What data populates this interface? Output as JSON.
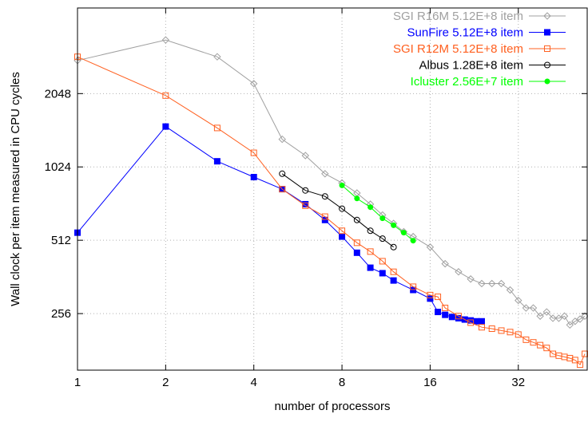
{
  "chart_data": {
    "type": "line",
    "xlabel": "number of processors",
    "ylabel": "Wall clock per item measured in CPU cycles",
    "x_scale": "log2",
    "y_scale": "log2",
    "xlim": [
      1,
      55
    ],
    "ylim": [
      150,
      4600
    ],
    "x_ticks": [
      {
        "value": 1,
        "label": "1"
      },
      {
        "value": 2,
        "label": "2"
      },
      {
        "value": 4,
        "label": "4"
      },
      {
        "value": 8,
        "label": "8"
      },
      {
        "value": 16,
        "label": "16"
      },
      {
        "value": 32,
        "label": "32"
      }
    ],
    "y_ticks": [
      {
        "value": 256,
        "label": "256"
      },
      {
        "value": 512,
        "label": "512"
      },
      {
        "value": 1024,
        "label": "1024"
      },
      {
        "value": 2048,
        "label": "2048"
      }
    ],
    "grid": true,
    "legend_position": "top-right",
    "series": [
      {
        "name": "SGI R16M 5.12E+8 item",
        "color": "#a0a0a0",
        "marker": "diamond",
        "points": [
          [
            1,
            2800
          ],
          [
            2,
            3400
          ],
          [
            3,
            2900
          ],
          [
            4,
            2250
          ],
          [
            5,
            1330
          ],
          [
            6,
            1140
          ],
          [
            7,
            960
          ],
          [
            8,
            880
          ],
          [
            9,
            800
          ],
          [
            10,
            720
          ],
          [
            11,
            650
          ],
          [
            12,
            600
          ],
          [
            13,
            555
          ],
          [
            14,
            530
          ],
          [
            16,
            480
          ],
          [
            18,
            410
          ],
          [
            20,
            380
          ],
          [
            22,
            355
          ],
          [
            24,
            340
          ],
          [
            26,
            340
          ],
          [
            28,
            340
          ],
          [
            30,
            320
          ],
          [
            32,
            290
          ],
          [
            34,
            270
          ],
          [
            36,
            270
          ],
          [
            38,
            250
          ],
          [
            40,
            260
          ],
          [
            42,
            245
          ],
          [
            44,
            245
          ],
          [
            46,
            250
          ],
          [
            48,
            230
          ],
          [
            50,
            238
          ],
          [
            52,
            243
          ],
          [
            54,
            250
          ]
        ]
      },
      {
        "name": "SunFire 5.12E+8 item",
        "color": "#0000ff",
        "marker": "filled-square",
        "points": [
          [
            1,
            550
          ],
          [
            2,
            1500
          ],
          [
            3,
            1080
          ],
          [
            4,
            930
          ],
          [
            5,
            830
          ],
          [
            6,
            720
          ],
          [
            7,
            620
          ],
          [
            8,
            530
          ],
          [
            9,
            455
          ],
          [
            10,
            395
          ],
          [
            11,
            375
          ],
          [
            12,
            350
          ],
          [
            14,
            320
          ],
          [
            16,
            295
          ],
          [
            17,
            260
          ],
          [
            18,
            253
          ],
          [
            19,
            248
          ],
          [
            20,
            245
          ],
          [
            21,
            242
          ],
          [
            22,
            240
          ],
          [
            23,
            238
          ],
          [
            24,
            238
          ]
        ]
      },
      {
        "name": "SGI R12M 5.12E+8 item",
        "color": "#ff6020",
        "marker": "open-square",
        "points": [
          [
            1,
            2900
          ],
          [
            2,
            2010
          ],
          [
            3,
            1480
          ],
          [
            4,
            1170
          ],
          [
            5,
            830
          ],
          [
            6,
            710
          ],
          [
            7,
            640
          ],
          [
            8,
            560
          ],
          [
            9,
            500
          ],
          [
            10,
            460
          ],
          [
            11,
            420
          ],
          [
            12,
            380
          ],
          [
            14,
            330
          ],
          [
            16,
            305
          ],
          [
            17,
            300
          ],
          [
            18,
            270
          ],
          [
            20,
            250
          ],
          [
            22,
            235
          ],
          [
            24,
            225
          ],
          [
            26,
            222
          ],
          [
            28,
            218
          ],
          [
            30,
            215
          ],
          [
            32,
            210
          ],
          [
            34,
            200
          ],
          [
            36,
            195
          ],
          [
            38,
            190
          ],
          [
            40,
            185
          ],
          [
            42,
            175
          ],
          [
            44,
            172
          ],
          [
            46,
            170
          ],
          [
            48,
            168
          ],
          [
            50,
            165
          ],
          [
            52,
            158
          ],
          [
            54,
            175
          ]
        ]
      },
      {
        "name": "Albus 1.28E+8 item",
        "color": "#000000",
        "marker": "open-circle",
        "points": [
          [
            5,
            960
          ],
          [
            6,
            820
          ],
          [
            7,
            775
          ],
          [
            8,
            690
          ],
          [
            9,
            620
          ],
          [
            10,
            560
          ],
          [
            11,
            520
          ],
          [
            12,
            480
          ]
        ]
      },
      {
        "name": "Icluster 2.56E+7 item",
        "color": "#00ff00",
        "marker": "filled-circle",
        "points": [
          [
            8,
            860
          ],
          [
            9,
            760
          ],
          [
            10,
            700
          ],
          [
            11,
            630
          ],
          [
            12,
            590
          ],
          [
            13,
            550
          ],
          [
            14,
            510
          ]
        ]
      }
    ]
  }
}
